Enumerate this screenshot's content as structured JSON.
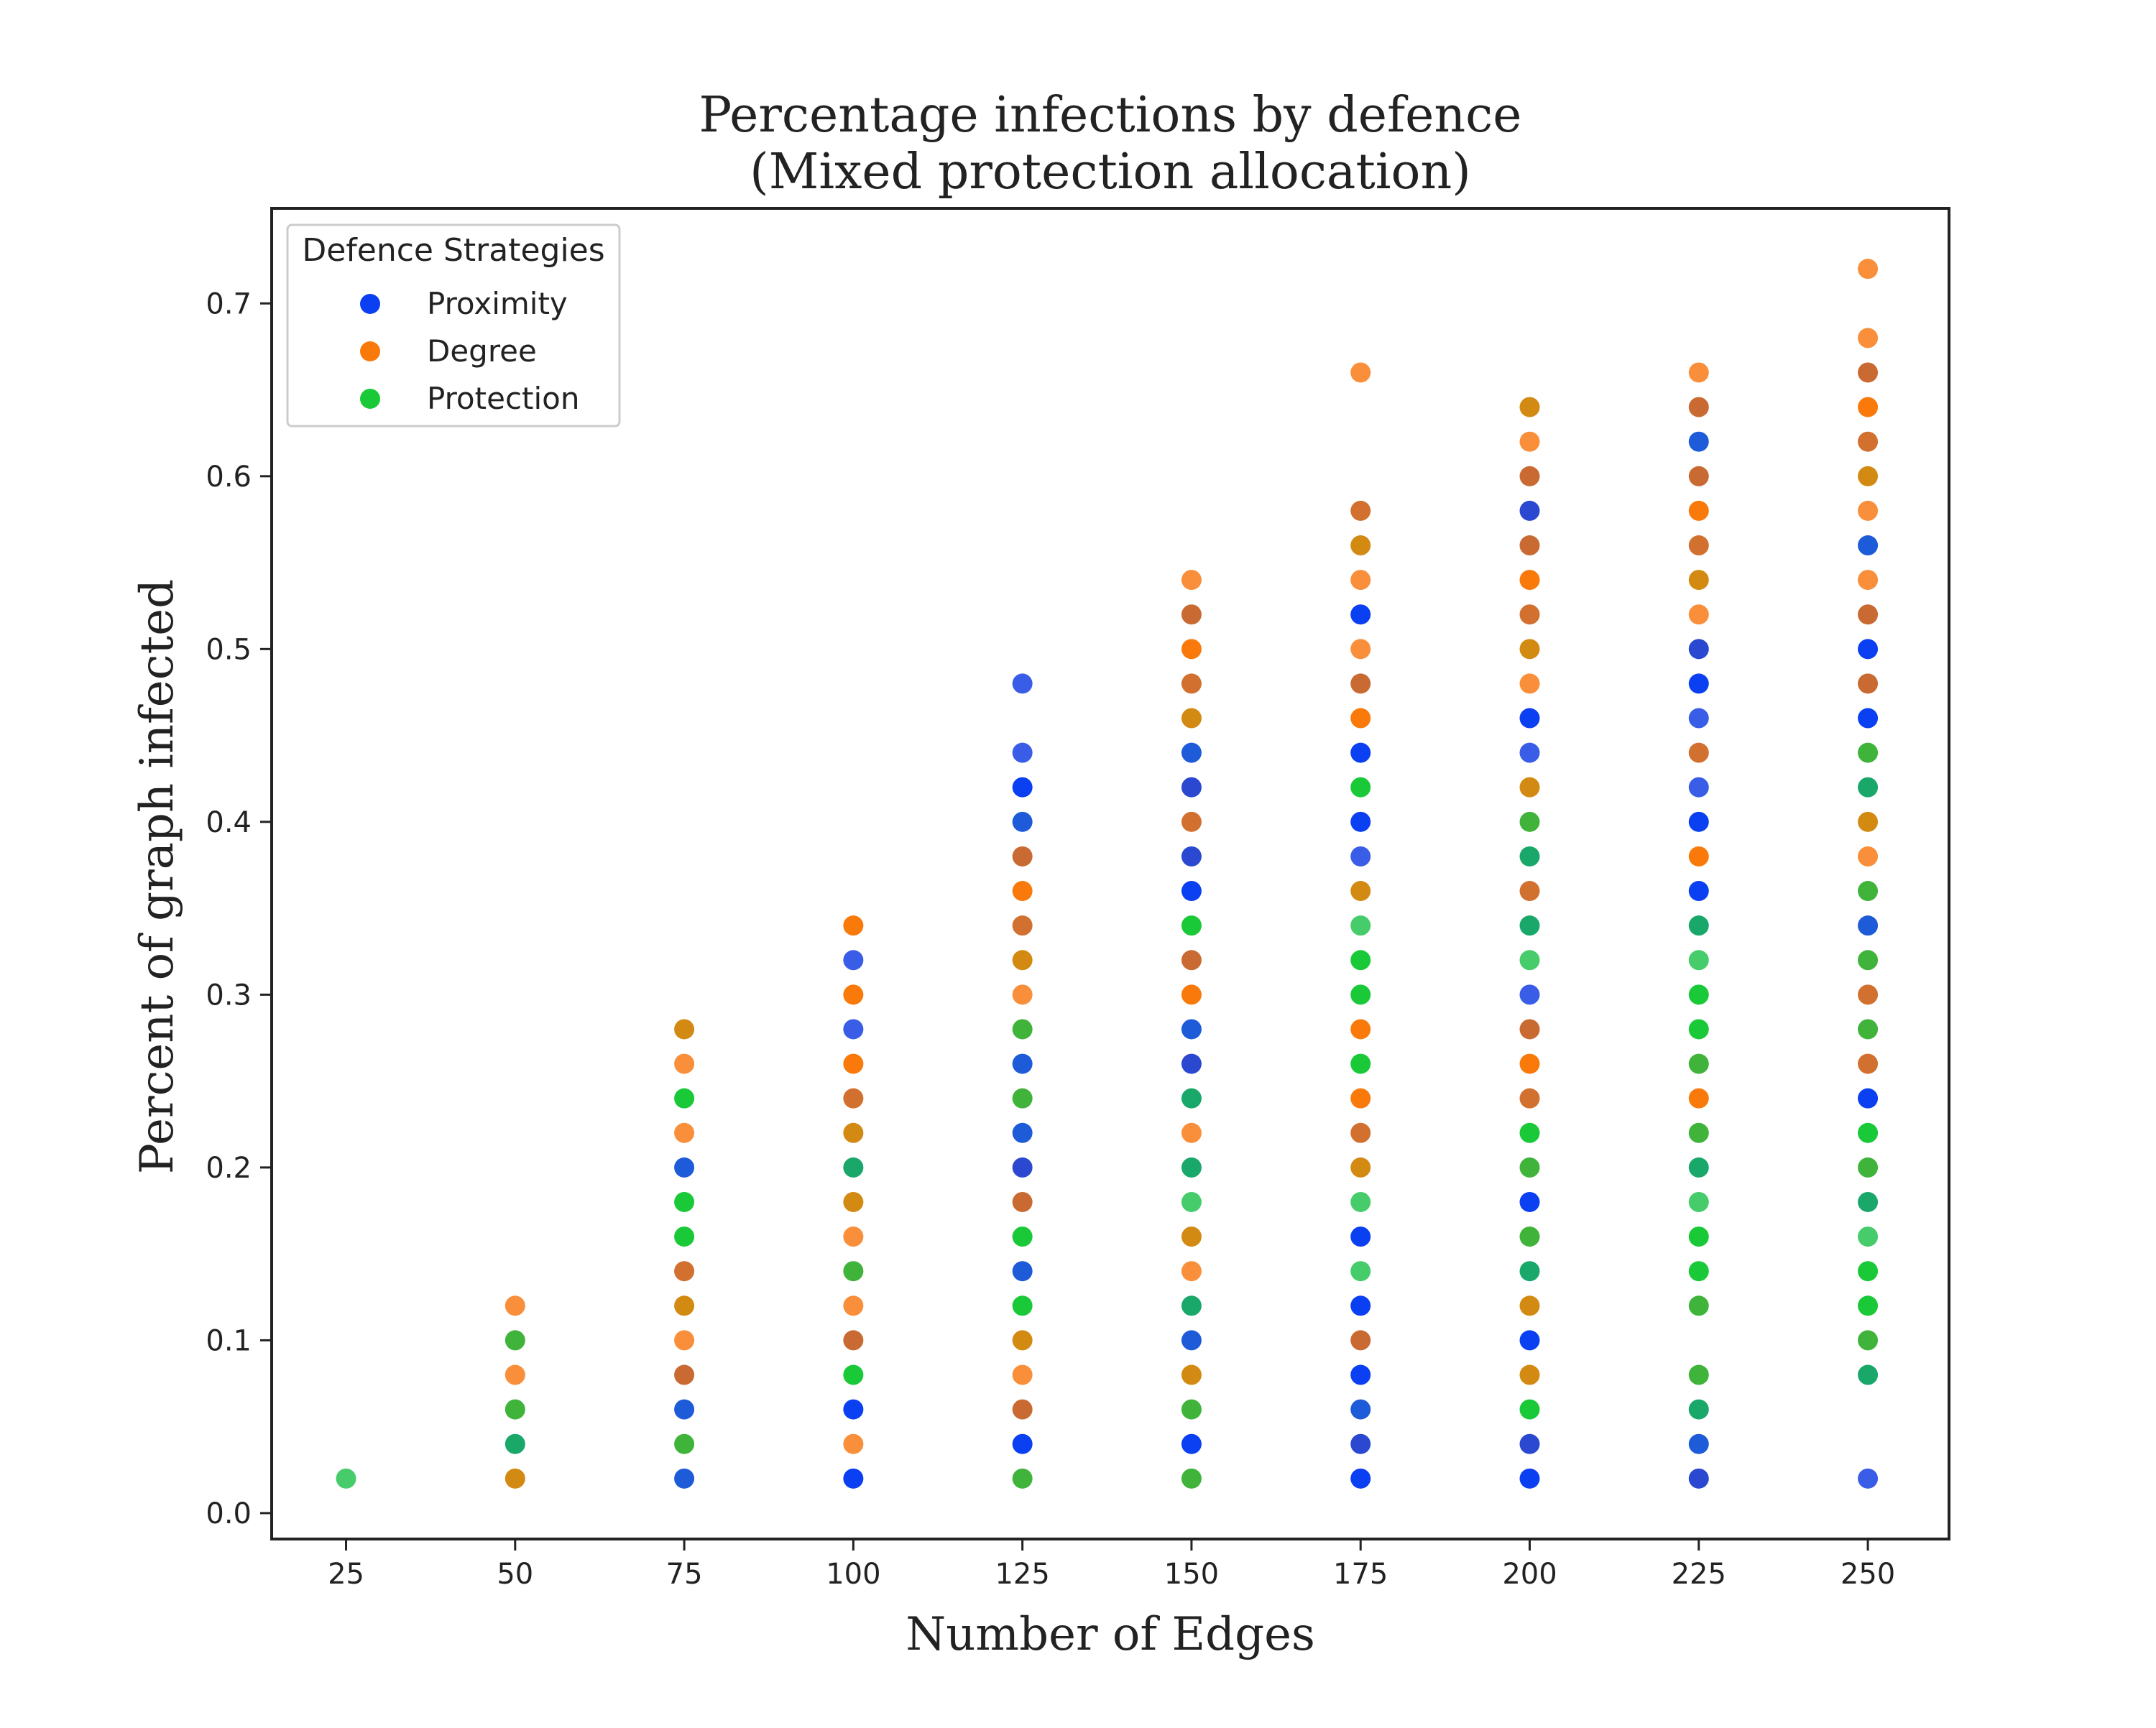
{
  "chart_data": {
    "type": "scatter",
    "title": "Percentage infections by defence",
    "subtitle": "(Mixed protection allocation)",
    "xlabel": "Number of Edges",
    "ylabel": "Percent of graph infected",
    "xlim": [
      14,
      262
    ],
    "ylim": [
      -0.015,
      0.755
    ],
    "xticks": [
      25,
      50,
      75,
      100,
      125,
      150,
      175,
      200,
      225,
      250
    ],
    "yticks": [
      0.0,
      0.1,
      0.2,
      0.3,
      0.4,
      0.5,
      0.6,
      0.7
    ],
    "xtick_labels": [
      "25",
      "50",
      "75",
      "100",
      "125",
      "150",
      "175",
      "200",
      "225",
      "250"
    ],
    "ytick_labels": [
      "0.0",
      "0.1",
      "0.2",
      "0.3",
      "0.4",
      "0.5",
      "0.6",
      "0.7"
    ],
    "grid": false,
    "legend": {
      "title": "Defence Strategies",
      "position": "top-left"
    },
    "series": [
      {
        "name": "Proximity",
        "color": "#0a3ff2",
        "points": [
          [
            75,
            0.02
          ],
          [
            75,
            0.06
          ],
          [
            75,
            0.2
          ],
          [
            100,
            0.02
          ],
          [
            100,
            0.06
          ],
          [
            100,
            0.28
          ],
          [
            100,
            0.32
          ],
          [
            125,
            0.04
          ],
          [
            125,
            0.14
          ],
          [
            125,
            0.2
          ],
          [
            125,
            0.22
          ],
          [
            125,
            0.26
          ],
          [
            125,
            0.4
          ],
          [
            125,
            0.42
          ],
          [
            125,
            0.44
          ],
          [
            125,
            0.48
          ],
          [
            150,
            0.04
          ],
          [
            150,
            0.1
          ],
          [
            150,
            0.26
          ],
          [
            150,
            0.28
          ],
          [
            150,
            0.36
          ],
          [
            150,
            0.38
          ],
          [
            150,
            0.42
          ],
          [
            150,
            0.44
          ],
          [
            175,
            0.02
          ],
          [
            175,
            0.04
          ],
          [
            175,
            0.06
          ],
          [
            175,
            0.08
          ],
          [
            175,
            0.12
          ],
          [
            175,
            0.16
          ],
          [
            175,
            0.38
          ],
          [
            175,
            0.4
          ],
          [
            175,
            0.44
          ],
          [
            175,
            0.52
          ],
          [
            200,
            0.02
          ],
          [
            200,
            0.04
          ],
          [
            200,
            0.1
          ],
          [
            200,
            0.18
          ],
          [
            200,
            0.3
          ],
          [
            200,
            0.44
          ],
          [
            200,
            0.46
          ],
          [
            200,
            0.58
          ],
          [
            225,
            0.02
          ],
          [
            225,
            0.04
          ],
          [
            225,
            0.36
          ],
          [
            225,
            0.4
          ],
          [
            225,
            0.42
          ],
          [
            225,
            0.46
          ],
          [
            225,
            0.48
          ],
          [
            225,
            0.5
          ],
          [
            225,
            0.62
          ],
          [
            250,
            0.02
          ],
          [
            250,
            0.24
          ],
          [
            250,
            0.34
          ],
          [
            250,
            0.46
          ],
          [
            250,
            0.5
          ],
          [
            250,
            0.56
          ]
        ]
      },
      {
        "name": "Degree",
        "color": "#f97a0b",
        "points": [
          [
            50,
            0.02
          ],
          [
            50,
            0.08
          ],
          [
            50,
            0.12
          ],
          [
            75,
            0.08
          ],
          [
            75,
            0.1
          ],
          [
            75,
            0.12
          ],
          [
            75,
            0.14
          ],
          [
            75,
            0.22
          ],
          [
            75,
            0.26
          ],
          [
            75,
            0.28
          ],
          [
            100,
            0.04
          ],
          [
            100,
            0.1
          ],
          [
            100,
            0.12
          ],
          [
            100,
            0.16
          ],
          [
            100,
            0.18
          ],
          [
            100,
            0.22
          ],
          [
            100,
            0.24
          ],
          [
            100,
            0.26
          ],
          [
            100,
            0.3
          ],
          [
            100,
            0.34
          ],
          [
            125,
            0.06
          ],
          [
            125,
            0.08
          ],
          [
            125,
            0.1
          ],
          [
            125,
            0.18
          ],
          [
            125,
            0.3
          ],
          [
            125,
            0.32
          ],
          [
            125,
            0.34
          ],
          [
            125,
            0.36
          ],
          [
            125,
            0.38
          ],
          [
            150,
            0.08
          ],
          [
            150,
            0.14
          ],
          [
            150,
            0.16
          ],
          [
            150,
            0.22
          ],
          [
            150,
            0.3
          ],
          [
            150,
            0.32
          ],
          [
            150,
            0.4
          ],
          [
            150,
            0.46
          ],
          [
            150,
            0.48
          ],
          [
            150,
            0.5
          ],
          [
            150,
            0.52
          ],
          [
            150,
            0.54
          ],
          [
            175,
            0.1
          ],
          [
            175,
            0.2
          ],
          [
            175,
            0.22
          ],
          [
            175,
            0.24
          ],
          [
            175,
            0.28
          ],
          [
            175,
            0.36
          ],
          [
            175,
            0.46
          ],
          [
            175,
            0.48
          ],
          [
            175,
            0.5
          ],
          [
            175,
            0.54
          ],
          [
            175,
            0.56
          ],
          [
            175,
            0.58
          ],
          [
            175,
            0.66
          ],
          [
            200,
            0.08
          ],
          [
            200,
            0.12
          ],
          [
            200,
            0.24
          ],
          [
            200,
            0.26
          ],
          [
            200,
            0.28
          ],
          [
            200,
            0.36
          ],
          [
            200,
            0.42
          ],
          [
            200,
            0.48
          ],
          [
            200,
            0.5
          ],
          [
            200,
            0.52
          ],
          [
            200,
            0.54
          ],
          [
            200,
            0.56
          ],
          [
            200,
            0.6
          ],
          [
            200,
            0.62
          ],
          [
            200,
            0.64
          ],
          [
            225,
            0.24
          ],
          [
            225,
            0.38
          ],
          [
            225,
            0.44
          ],
          [
            225,
            0.52
          ],
          [
            225,
            0.54
          ],
          [
            225,
            0.56
          ],
          [
            225,
            0.58
          ],
          [
            225,
            0.6
          ],
          [
            225,
            0.64
          ],
          [
            225,
            0.66
          ],
          [
            250,
            0.26
          ],
          [
            250,
            0.3
          ],
          [
            250,
            0.38
          ],
          [
            250,
            0.4
          ],
          [
            250,
            0.48
          ],
          [
            250,
            0.52
          ],
          [
            250,
            0.54
          ],
          [
            250,
            0.58
          ],
          [
            250,
            0.6
          ],
          [
            250,
            0.62
          ],
          [
            250,
            0.64
          ],
          [
            250,
            0.66
          ],
          [
            250,
            0.68
          ],
          [
            250,
            0.72
          ]
        ]
      },
      {
        "name": "Protection",
        "color": "#1ac938",
        "points": [
          [
            25,
            0.02
          ],
          [
            50,
            0.04
          ],
          [
            50,
            0.06
          ],
          [
            50,
            0.1
          ],
          [
            75,
            0.04
          ],
          [
            75,
            0.16
          ],
          [
            75,
            0.18
          ],
          [
            75,
            0.24
          ],
          [
            100,
            0.08
          ],
          [
            100,
            0.14
          ],
          [
            100,
            0.2
          ],
          [
            125,
            0.02
          ],
          [
            125,
            0.12
          ],
          [
            125,
            0.16
          ],
          [
            125,
            0.24
          ],
          [
            125,
            0.28
          ],
          [
            150,
            0.02
          ],
          [
            150,
            0.06
          ],
          [
            150,
            0.12
          ],
          [
            150,
            0.18
          ],
          [
            150,
            0.2
          ],
          [
            150,
            0.24
          ],
          [
            150,
            0.34
          ],
          [
            175,
            0.14
          ],
          [
            175,
            0.18
          ],
          [
            175,
            0.26
          ],
          [
            175,
            0.3
          ],
          [
            175,
            0.32
          ],
          [
            175,
            0.34
          ],
          [
            175,
            0.42
          ],
          [
            200,
            0.06
          ],
          [
            200,
            0.14
          ],
          [
            200,
            0.16
          ],
          [
            200,
            0.2
          ],
          [
            200,
            0.22
          ],
          [
            200,
            0.32
          ],
          [
            200,
            0.34
          ],
          [
            200,
            0.38
          ],
          [
            200,
            0.4
          ],
          [
            225,
            0.06
          ],
          [
            225,
            0.08
          ],
          [
            225,
            0.12
          ],
          [
            225,
            0.14
          ],
          [
            225,
            0.16
          ],
          [
            225,
            0.18
          ],
          [
            225,
            0.2
          ],
          [
            225,
            0.22
          ],
          [
            225,
            0.26
          ],
          [
            225,
            0.28
          ],
          [
            225,
            0.3
          ],
          [
            225,
            0.32
          ],
          [
            225,
            0.34
          ],
          [
            250,
            0.08
          ],
          [
            250,
            0.1
          ],
          [
            250,
            0.12
          ],
          [
            250,
            0.14
          ],
          [
            250,
            0.16
          ],
          [
            250,
            0.18
          ],
          [
            250,
            0.2
          ],
          [
            250,
            0.22
          ],
          [
            250,
            0.28
          ],
          [
            250,
            0.32
          ],
          [
            250,
            0.36
          ],
          [
            250,
            0.42
          ],
          [
            250,
            0.44
          ]
        ]
      }
    ]
  }
}
